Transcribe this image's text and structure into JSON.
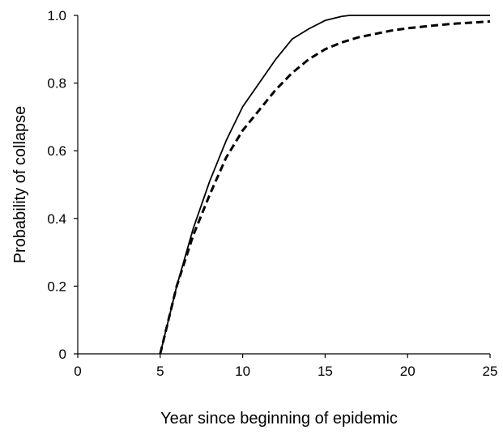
{
  "chart_data": {
    "type": "line",
    "title": "",
    "xlabel": "Year since beginning of epidemic",
    "ylabel": "Probability of collapse",
    "xlim": [
      0,
      25
    ],
    "ylim": [
      0,
      1.0
    ],
    "x_ticks": [
      0,
      5,
      10,
      15,
      20,
      25
    ],
    "x_tick_labels": [
      "0",
      "5",
      "10",
      "15",
      "20",
      "25"
    ],
    "y_ticks": [
      0,
      0.2,
      0.4,
      0.6,
      0.8,
      1.0
    ],
    "y_tick_labels": [
      "0",
      "0.2",
      "0.4",
      "0.6",
      "0.8",
      "1.0"
    ],
    "grid": false,
    "legend": "none",
    "series": [
      {
        "style": "solid",
        "color": "#000000",
        "x": [
          5,
          6,
          7,
          8,
          9,
          10,
          11,
          12,
          13,
          14,
          15,
          16,
          16.5,
          17,
          18,
          20,
          22,
          25
        ],
        "y": [
          0.0,
          0.2,
          0.37,
          0.51,
          0.63,
          0.73,
          0.8,
          0.87,
          0.93,
          0.96,
          0.985,
          0.997,
          1.0,
          1.0,
          1.0,
          1.0,
          1.0,
          1.0
        ]
      },
      {
        "style": "dashed",
        "color": "#000000",
        "x": [
          5,
          6,
          7,
          8,
          9,
          10,
          11,
          12,
          13,
          14,
          15,
          16,
          17,
          18,
          19,
          20,
          21,
          22,
          23,
          24,
          25
        ],
        "y": [
          0.0,
          0.2,
          0.35,
          0.47,
          0.58,
          0.66,
          0.72,
          0.78,
          0.83,
          0.87,
          0.9,
          0.92,
          0.935,
          0.945,
          0.955,
          0.962,
          0.967,
          0.972,
          0.976,
          0.979,
          0.982
        ]
      }
    ]
  }
}
